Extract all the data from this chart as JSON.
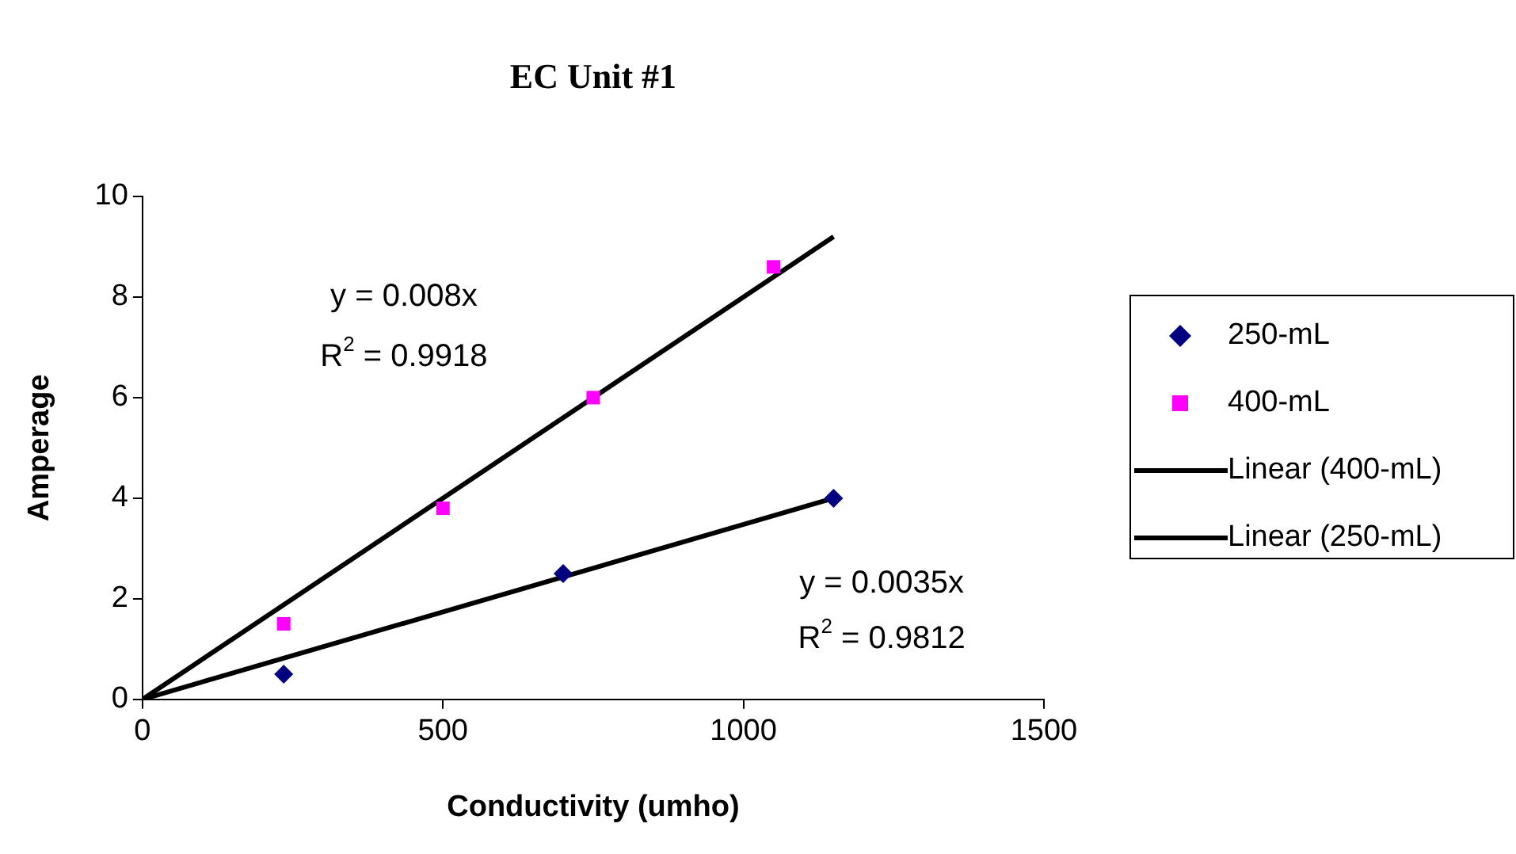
{
  "chart_data": {
    "type": "scatter",
    "title": "EC Unit #1",
    "xlabel": "Conductivity (umho)",
    "ylabel": "Amperage",
    "xlim": [
      0,
      1500
    ],
    "xticks": [
      0,
      500,
      1000,
      1500
    ],
    "ylim": [
      0,
      10
    ],
    "yticks": [
      0,
      2,
      4,
      6,
      8,
      10
    ],
    "grid": false,
    "legend": "right",
    "series": [
      {
        "name": "250-mL",
        "marker": "diamond",
        "color": "#000080",
        "x": [
          235,
          700,
          1150
        ],
        "values": [
          0.5,
          2.5,
          4.0
        ]
      },
      {
        "name": "400-mL",
        "marker": "square",
        "color": "#ff00ff",
        "x": [
          235,
          500,
          750,
          1050
        ],
        "values": [
          1.5,
          3.8,
          6.0,
          8.6
        ]
      },
      {
        "name": "Linear (400-mL)",
        "type": "line",
        "marker": "none",
        "color": "#000000",
        "x": [
          0,
          1150
        ],
        "values": [
          0,
          9.2
        ]
      },
      {
        "name": "Linear (250-mL)",
        "type": "line",
        "marker": "none",
        "color": "#000000",
        "x": [
          0,
          1150
        ],
        "values": [
          0,
          4.0
        ]
      }
    ],
    "annotations": [
      "y = 0.008x",
      "R$^{2}$ = 0.9918",
      "y = 0.0035x",
      "R$^{2}$ = 0.9812"
    ]
  }
}
